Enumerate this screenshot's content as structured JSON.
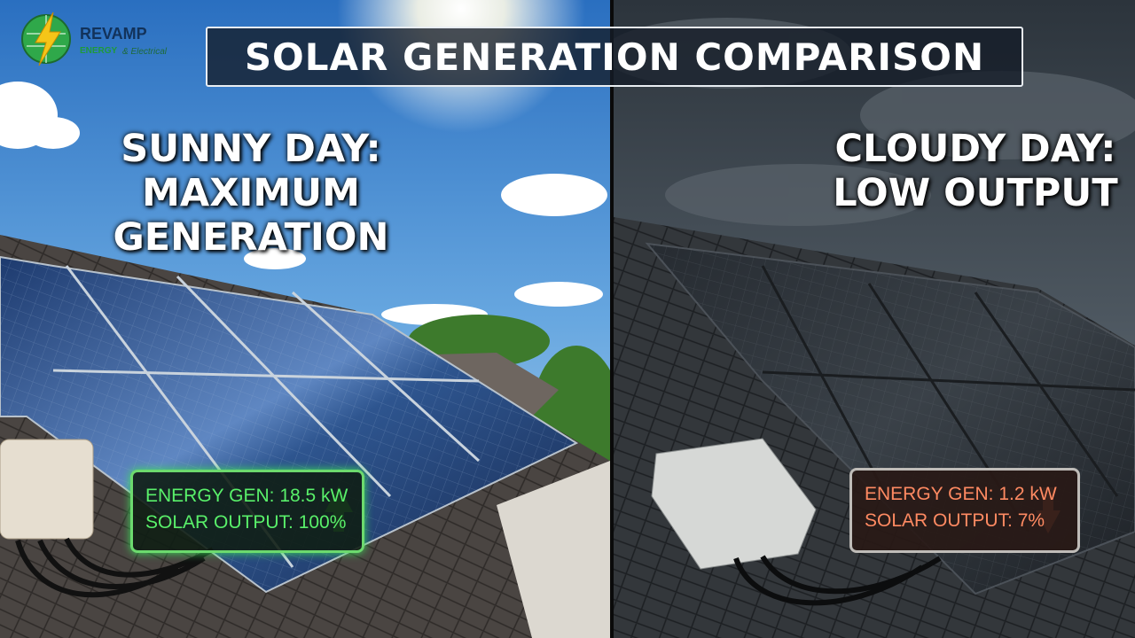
{
  "logo": {
    "name": "REVAMP",
    "tagline": "ENERGY",
    "subtagline": "& Electrical"
  },
  "title": "SOLAR GENERATION COMPARISON",
  "panels": [
    {
      "heading": [
        "SUNNY DAY:",
        "MAXIMUM GENERATION"
      ],
      "readout": [
        "ENERGY GEN: 18.5 kW",
        "SOLAR OUTPUT: 100%"
      ]
    },
    {
      "heading": [
        "CLOUDY DAY:",
        "LOW OUTPUT"
      ],
      "readout": [
        "ENERGY GEN: 1.2 kW",
        "SOLAR OUTPUT: 7%"
      ]
    }
  ]
}
